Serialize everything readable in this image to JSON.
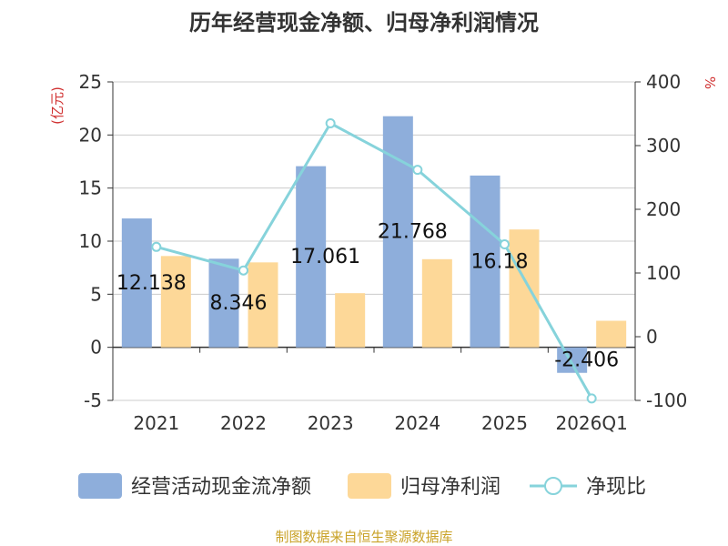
{
  "chart_data": {
    "type": "bar",
    "title": "历年经营现金净额、归母净利润情况",
    "categories": [
      "2021",
      "2022",
      "2023",
      "2024",
      "2025",
      "2026Q1"
    ],
    "series": [
      {
        "name": "经营活动现金流净额",
        "type": "bar",
        "axis": "left",
        "color": "#8eaedb",
        "values": [
          12.138,
          8.346,
          17.061,
          21.768,
          16.18,
          -2.406
        ],
        "labels": [
          "12.138",
          "8.346",
          "17.061",
          "21.768",
          "16.18",
          "-2.406"
        ]
      },
      {
        "name": "归母净利润",
        "type": "bar",
        "axis": "left",
        "color": "#fdd898",
        "values": [
          8.6,
          8.0,
          5.1,
          8.3,
          11.1,
          2.5
        ]
      },
      {
        "name": "净现比",
        "type": "line",
        "axis": "right",
        "color": "#86d3db",
        "values": [
          141,
          104,
          335,
          262,
          145,
          -97
        ]
      }
    ],
    "y_left": {
      "label": "(亿元)",
      "label_color": "#d03030",
      "lim": [
        -5,
        25
      ],
      "ticks": [
        25,
        20,
        15,
        10,
        5,
        0,
        -5
      ]
    },
    "y_right": {
      "label": "%",
      "label_color": "#d03030",
      "lim": [
        -100,
        400
      ],
      "ticks": [
        400,
        300,
        200,
        100,
        0,
        -100
      ]
    },
    "grid": true,
    "legend_position": "bottom-center",
    "source": "制图数据来自恒生聚源数据库",
    "source_color": "#c9a227"
  }
}
